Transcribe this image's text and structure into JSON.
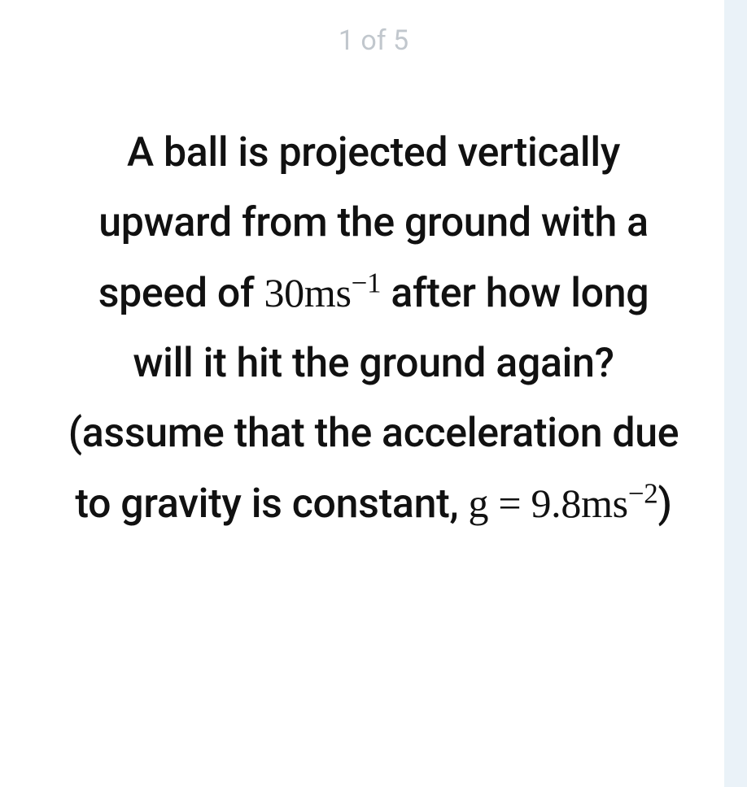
{
  "pagination": {
    "text": "1 of 5"
  },
  "question": {
    "part1": "A ball is projected vertically upward from the ground with a speed of ",
    "speed_value": "30ms",
    "speed_exponent": "−1",
    "part2": " after how long will it hit the ground again? (assume that the acceleration due to gravity is constant, ",
    "g_symbol": "g",
    "equals": " = ",
    "g_value": "9.8ms",
    "g_exponent": "−2",
    "closing": ")"
  }
}
